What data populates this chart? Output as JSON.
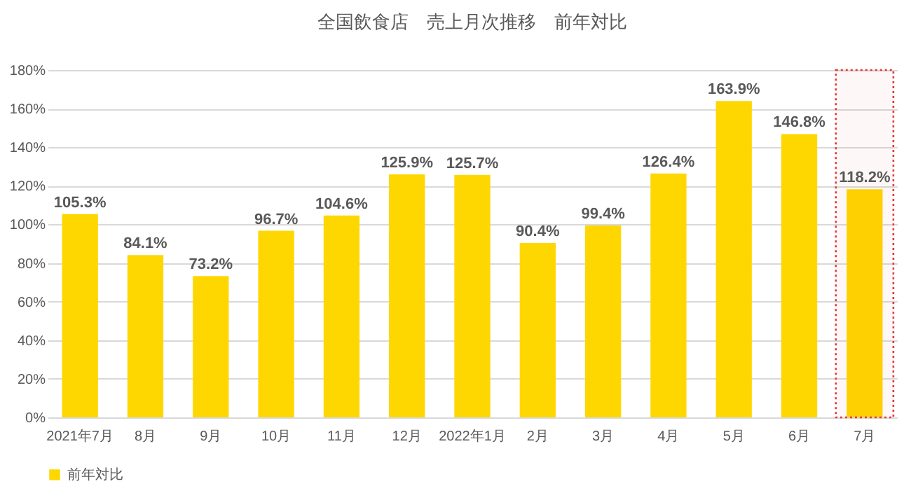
{
  "chart_data": {
    "type": "bar",
    "title": "全国飲食店　売上月次推移　前年対比",
    "categories": [
      "2021年7月",
      "8月",
      "9月",
      "10月",
      "11月",
      "12月",
      "2022年1月",
      "2月",
      "3月",
      "4月",
      "5月",
      "6月",
      "7月"
    ],
    "series": [
      {
        "name": "前年対比",
        "color": "#ffd700",
        "values": [
          105.3,
          84.1,
          73.2,
          96.7,
          104.6,
          125.9,
          125.7,
          90.4,
          99.4,
          126.4,
          163.9,
          146.8,
          118.2
        ]
      }
    ],
    "ylim": [
      0,
      180
    ],
    "yticks": [
      {
        "value": 0,
        "label": "0%"
      },
      {
        "value": 20,
        "label": "20%"
      },
      {
        "value": 40,
        "label": "40%"
      },
      {
        "value": 60,
        "label": "60%"
      },
      {
        "value": 80,
        "label": "80%"
      },
      {
        "value": 100,
        "label": "100%"
      },
      {
        "value": 120,
        "label": "120%"
      },
      {
        "value": 140,
        "label": "140%"
      },
      {
        "value": 160,
        "label": "160%"
      },
      {
        "value": 180,
        "label": "180%"
      }
    ],
    "value_labels": [
      [
        "105.3%",
        "84.1%",
        "73.2%",
        "96.7%",
        "104.6%",
        "125.9%",
        "125.7%",
        "90.4%",
        "99.4%",
        "126.4%",
        "163.9%",
        "146.8%",
        "118.2%"
      ]
    ],
    "bands": [
      {
        "axis": "x",
        "from": "7月",
        "to": "7月",
        "color": "#e03c3c"
      }
    ],
    "grid": "y",
    "legend": "bottom"
  }
}
